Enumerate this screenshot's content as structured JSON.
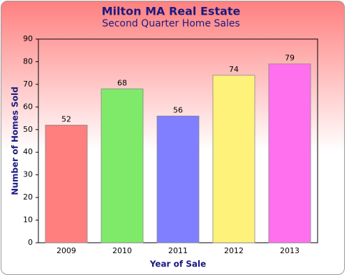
{
  "chart_data": {
    "type": "bar",
    "title": "Milton MA Real Estate",
    "subtitle": "Second Quarter Home Sales",
    "x_label": "Year of Sale",
    "y_label": "Number of Homes Sold",
    "categories": [
      "2009",
      "2010",
      "2011",
      "2012",
      "2013"
    ],
    "values": [
      52,
      68,
      56,
      74,
      79
    ],
    "colors": [
      "#ff7f7f",
      "#7fea6a",
      "#7f7fff",
      "#fff27a",
      "#ff70ee"
    ],
    "ylim": [
      0,
      90
    ],
    "yticks": [
      0,
      10,
      20,
      30,
      40,
      50,
      60,
      70,
      80,
      90
    ],
    "grid": false
  }
}
